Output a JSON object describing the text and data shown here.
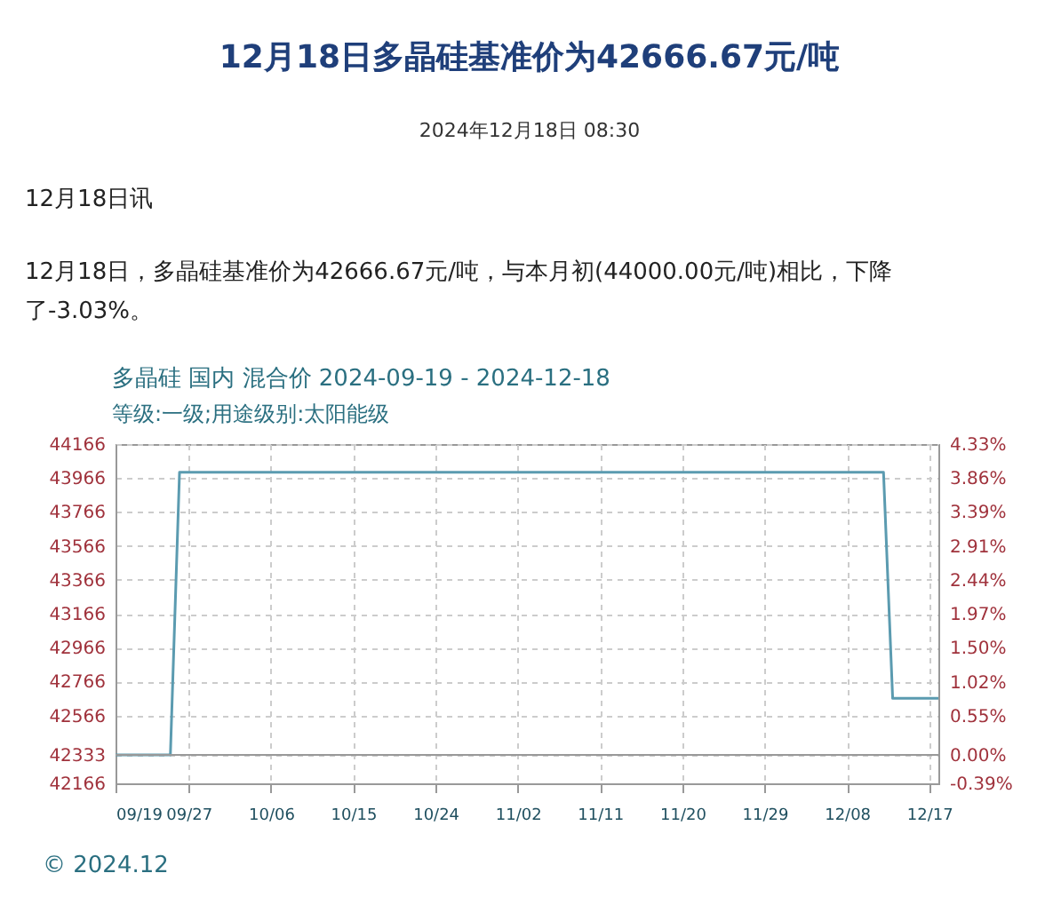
{
  "chart_data": {
    "type": "line",
    "title": "12月18日多晶硅基准价为42666.67元/吨",
    "subtitle": "2024年12月18日 08:30",
    "annotations": [
      "12月18日讯",
      "12月18日，多晶硅基准价为42666.67元/吨，与本月初(44000.00元/吨)相比，下降了-3.03%。",
      "多晶硅 国内 混合价 2024-09-19 - 2024-12-18",
      "等级:一级;用途级别:太阳能级",
      "© 2024.12"
    ],
    "x": [
      "2024-09-19",
      "2024-09-25",
      "2024-09-26",
      "2024-12-12",
      "2024-12-13",
      "2024-12-18"
    ],
    "series": [
      {
        "color": "#5b9bb0",
        "values": [
          42333,
          42333,
          44000,
          44000,
          42666.67,
          42666.67
        ]
      }
    ],
    "xlim": [
      "2024-09-19",
      "2024-12-18"
    ],
    "xticks": [
      {
        "value": "2024-09-19",
        "label": "09/19"
      },
      {
        "value": "2024-09-27",
        "label": "09/27"
      },
      {
        "value": "2024-10-06",
        "label": "10/06"
      },
      {
        "value": "2024-10-15",
        "label": "10/15"
      },
      {
        "value": "2024-10-24",
        "label": "10/24"
      },
      {
        "value": "2024-11-02",
        "label": "11/02"
      },
      {
        "value": "2024-11-11",
        "label": "11/11"
      },
      {
        "value": "2024-11-20",
        "label": "11/20"
      },
      {
        "value": "2024-11-29",
        "label": "11/29"
      },
      {
        "value": "2024-12-08",
        "label": "12/08"
      },
      {
        "value": "2024-12-17",
        "label": "12/17"
      }
    ],
    "ylim": [
      42166,
      44166
    ],
    "yticks": [
      42166,
      42333,
      42566,
      42766,
      42966,
      43166,
      43366,
      43566,
      43766,
      43966,
      44166
    ],
    "y2lim": [
      -0.39,
      4.33
    ],
    "y2ticks": [
      {
        "value": -0.39,
        "label": "-0.39%"
      },
      {
        "value": 0,
        "label": "0.00%"
      },
      {
        "value": 0.55,
        "label": "0.55%"
      },
      {
        "value": 1.02,
        "label": "1.02%"
      },
      {
        "value": 1.5,
        "label": "1.50%"
      },
      {
        "value": 1.97,
        "label": "1.97%"
      },
      {
        "value": 2.44,
        "label": "2.44%"
      },
      {
        "value": 2.91,
        "label": "2.91%"
      },
      {
        "value": 3.39,
        "label": "3.39%"
      },
      {
        "value": 3.86,
        "label": "3.86%"
      },
      {
        "value": 4.33,
        "label": "4.33%"
      }
    ],
    "ref_lines": [
      {
        "axis": "y",
        "value": 42333,
        "color": "#999999"
      }
    ],
    "grid": true,
    "line_style": "solid",
    "marker": "none"
  }
}
